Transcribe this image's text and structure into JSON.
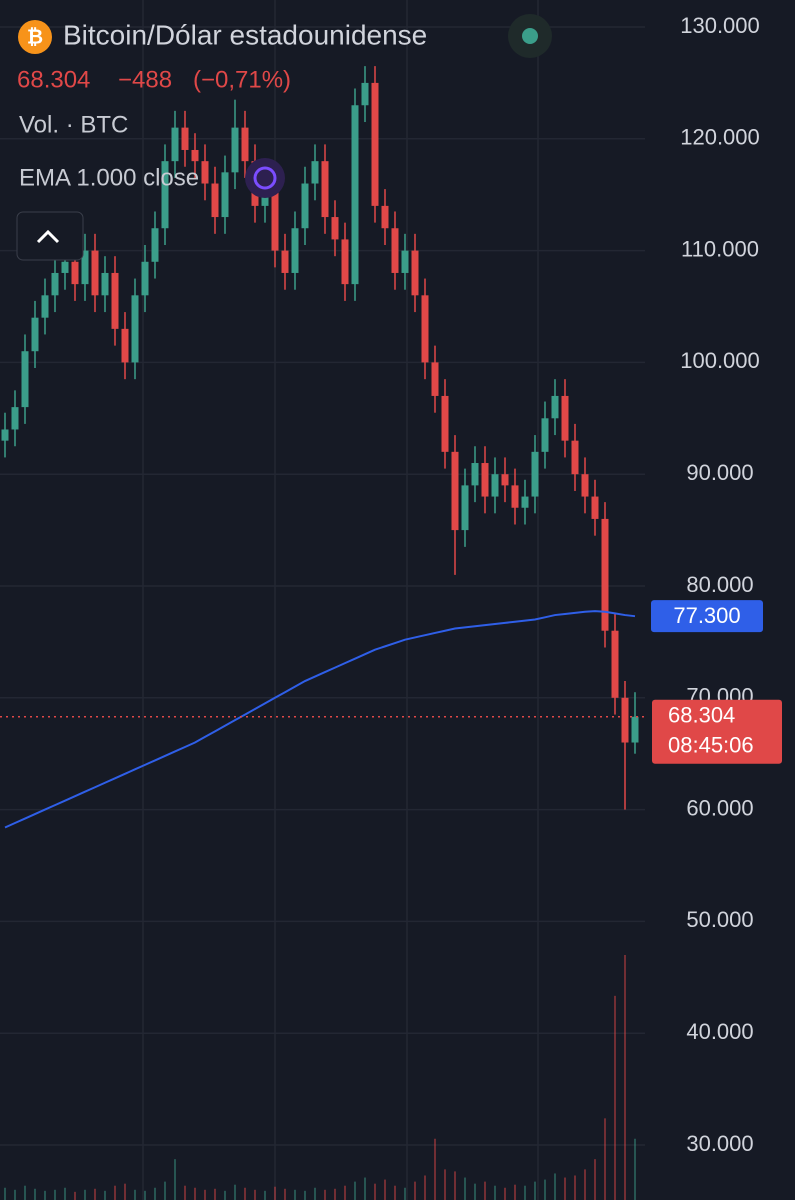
{
  "chart_data": {
    "type": "candlestick",
    "title": "Bitcoin/Dólar estadounidense",
    "change": {
      "value": -488,
      "label": "−488"
    },
    "change_pct": {
      "value": -0.71,
      "label": "(−0,71%)"
    },
    "volume_label": "Vol. · BTC",
    "last_price": {
      "value": 68304,
      "label": "68.304"
    },
    "countdown": "08:45:06",
    "up_color": "#3b9e8a",
    "down_color": "#e04848",
    "ylim": [
      25080,
      132415
    ],
    "yticks": [
      {
        "value": 30000,
        "label": "30.000"
      },
      {
        "value": 40000,
        "label": "40.000"
      },
      {
        "value": 50000,
        "label": "50.000"
      },
      {
        "value": 60000,
        "label": "60.000"
      },
      {
        "value": 70000,
        "label": "70.000"
      },
      {
        "value": 80000,
        "label": "80.000"
      },
      {
        "value": 90000,
        "label": "90.000"
      },
      {
        "value": 100000,
        "label": "100.000"
      },
      {
        "value": 110000,
        "label": "110.000"
      },
      {
        "value": 120000,
        "label": "120.000"
      },
      {
        "value": 130000,
        "label": "130.000"
      }
    ],
    "grid": true,
    "candles": {
      "open": [
        93000,
        94000,
        96000,
        101000,
        104000,
        106000,
        108000,
        109000,
        107000,
        110000,
        106000,
        108000,
        103000,
        100000,
        106000,
        109000,
        112000,
        118000,
        121000,
        119000,
        118000,
        116000,
        113000,
        117000,
        121000,
        118000,
        114000,
        116000,
        110000,
        108000,
        112000,
        116000,
        118000,
        113000,
        111000,
        107000,
        123000,
        125000,
        114000,
        112000,
        108000,
        110000,
        106000,
        100000,
        97000,
        92000,
        85000,
        89000,
        91000,
        88000,
        90000,
        89000,
        87000,
        88000,
        92000,
        95000,
        97000,
        93000,
        90000,
        88000,
        86000,
        76000,
        70000,
        66000
      ],
      "high": [
        95500,
        97500,
        102500,
        105500,
        107500,
        109500,
        110500,
        110500,
        111500,
        111500,
        109500,
        109500,
        104500,
        107500,
        110500,
        113500,
        119500,
        122500,
        122500,
        120500,
        119500,
        117500,
        118500,
        123500,
        122500,
        119500,
        117500,
        117500,
        111500,
        113500,
        117500,
        119500,
        119500,
        114500,
        112500,
        124500,
        126500,
        126500,
        115500,
        113500,
        111500,
        111500,
        107500,
        101500,
        98500,
        93500,
        90500,
        92500,
        92500,
        91500,
        91500,
        90500,
        89500,
        93500,
        96500,
        98500,
        98500,
        94500,
        91500,
        89500,
        87500,
        77500,
        71500,
        70500
      ],
      "low": [
        91500,
        92500,
        94500,
        99500,
        102500,
        104500,
        106500,
        105500,
        105500,
        104500,
        104500,
        101500,
        98500,
        98500,
        104500,
        107500,
        110500,
        116500,
        117500,
        116500,
        114500,
        111500,
        111500,
        115500,
        116500,
        112500,
        112500,
        108500,
        106500,
        106500,
        110500,
        114500,
        111500,
        109500,
        105500,
        105500,
        121500,
        112500,
        110500,
        106500,
        106500,
        104500,
        98500,
        95500,
        90500,
        81000,
        83500,
        87500,
        86500,
        86500,
        87500,
        85500,
        85500,
        86500,
        90500,
        93500,
        91500,
        88500,
        86500,
        84500,
        74500,
        68500,
        60000,
        65000
      ],
      "close": [
        94000,
        96000,
        101000,
        104000,
        106000,
        108000,
        109000,
        107000,
        110000,
        106000,
        108000,
        103000,
        100000,
        106000,
        109000,
        112000,
        118000,
        121000,
        119000,
        118000,
        116000,
        113000,
        117000,
        121000,
        118000,
        114000,
        116000,
        110000,
        108000,
        112000,
        116000,
        118000,
        113000,
        111000,
        107000,
        123000,
        125000,
        114000,
        112000,
        108000,
        110000,
        106000,
        100000,
        97000,
        92000,
        85000,
        89000,
        91000,
        88000,
        90000,
        89000,
        87000,
        88000,
        92000,
        95000,
        97000,
        93000,
        90000,
        88000,
        86000,
        76000,
        70000,
        66000,
        68304
      ]
    },
    "volume": [
      12,
      10,
      14,
      11,
      9,
      10,
      12,
      8,
      10,
      11,
      9,
      14,
      16,
      10,
      9,
      12,
      18,
      40,
      14,
      12,
      10,
      11,
      9,
      15,
      12,
      10,
      9,
      13,
      11,
      10,
      9,
      12,
      10,
      11,
      14,
      18,
      22,
      16,
      20,
      14,
      12,
      18,
      24,
      60,
      30,
      28,
      22,
      16,
      18,
      14,
      12,
      15,
      14,
      18,
      20,
      26,
      22,
      24,
      30,
      40,
      80,
      200,
      240,
      60
    ],
    "ema": {
      "name": "EMA 1.000 close",
      "color": "#2f5fe8",
      "label": {
        "value": 77300,
        "label": "77.300"
      },
      "values": [
        58400,
        58800,
        59200,
        59600,
        60000,
        60400,
        60800,
        61200,
        61600,
        62000,
        62400,
        62800,
        63200,
        63600,
        64000,
        64400,
        64800,
        65200,
        65600,
        66000,
        66500,
        67000,
        67500,
        68000,
        68500,
        69000,
        69500,
        70000,
        70500,
        71000,
        71500,
        71900,
        72300,
        72700,
        73100,
        73500,
        73900,
        74300,
        74600,
        74900,
        75200,
        75400,
        75600,
        75800,
        76000,
        76200,
        76300,
        76400,
        76500,
        76600,
        76700,
        76800,
        76900,
        77000,
        77200,
        77400,
        77500,
        77600,
        77700,
        77750,
        77700,
        77550,
        77400,
        77300
      ]
    }
  }
}
